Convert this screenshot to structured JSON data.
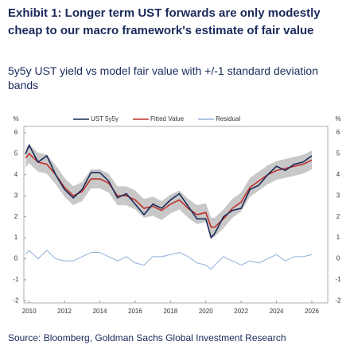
{
  "chart_data": {
    "type": "line",
    "title": "Exhibit 1: Longer term UST forwards are only modestly cheap to our macro framework's estimate of fair value",
    "subtitle": "5y5y UST yield vs model fair value with +/-1 standard deviation bands",
    "source": "Source: Bloomberg, Goldman Sachs Global Investment Research",
    "y_unit": "%",
    "x": [
      2009.8,
      2010.0,
      2010.5,
      2011.0,
      2011.5,
      2012.0,
      2012.5,
      2013.0,
      2013.5,
      2014.0,
      2014.5,
      2015.0,
      2015.5,
      2016.0,
      2016.5,
      2017.0,
      2017.5,
      2018.0,
      2018.5,
      2019.0,
      2019.5,
      2020.0,
      2020.3,
      2020.5,
      2021.0,
      2021.5,
      2022.0,
      2022.5,
      2023.0,
      2023.5,
      2024.0,
      2024.5,
      2025.0,
      2025.5,
      2026.0
    ],
    "series": [
      {
        "name": "UST 5y5y",
        "color": "#1a2a5a",
        "values": [
          5.0,
          5.4,
          4.6,
          4.9,
          4.0,
          3.3,
          2.9,
          3.3,
          4.1,
          4.1,
          3.7,
          2.9,
          3.1,
          2.6,
          2.1,
          2.6,
          2.4,
          2.8,
          3.1,
          2.5,
          1.9,
          1.9,
          1.0,
          1.2,
          2.0,
          2.3,
          2.4,
          3.3,
          3.5,
          4.0,
          4.4,
          4.2,
          4.5,
          4.6,
          4.9
        ]
      },
      {
        "name": "Fitted Value",
        "color": "#c0302a",
        "std": 0.45,
        "values": [
          4.8,
          5.0,
          4.6,
          4.5,
          4.0,
          3.4,
          3.0,
          3.2,
          3.8,
          3.8,
          3.6,
          3.0,
          3.0,
          2.8,
          2.4,
          2.5,
          2.3,
          2.6,
          2.8,
          2.4,
          2.1,
          2.2,
          1.5,
          1.5,
          1.9,
          2.4,
          2.7,
          3.4,
          3.7,
          4.0,
          4.2,
          4.3,
          4.4,
          4.5,
          4.7
        ]
      },
      {
        "name": "Residual",
        "color": "#8fb0d8",
        "values": [
          0.2,
          0.4,
          0.0,
          0.4,
          0.0,
          -0.1,
          -0.1,
          0.1,
          0.3,
          0.3,
          0.1,
          -0.1,
          0.1,
          -0.2,
          -0.3,
          0.1,
          0.1,
          0.2,
          0.3,
          0.1,
          -0.2,
          -0.3,
          -0.5,
          -0.3,
          0.1,
          -0.1,
          -0.3,
          -0.1,
          -0.2,
          0.0,
          0.2,
          -0.1,
          0.1,
          0.1,
          0.2
        ]
      }
    ],
    "xlim": [
      2009.7,
      2026.9
    ],
    "xticks": [
      2010,
      2012,
      2014,
      2016,
      2018,
      2020,
      2022,
      2024,
      2026
    ],
    "ylim": [
      -2.1,
      6.3
    ],
    "yticks": [
      -2,
      -1,
      0,
      1,
      2,
      3,
      4,
      5,
      6
    ]
  }
}
